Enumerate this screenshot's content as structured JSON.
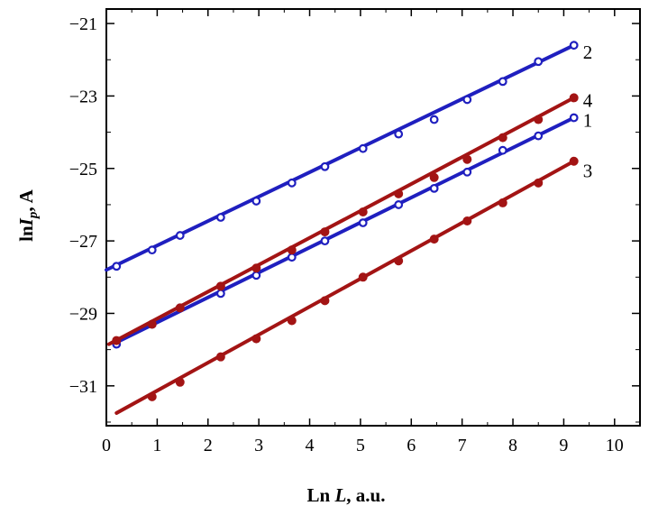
{
  "chart_data": {
    "type": "scatter",
    "title": "",
    "xlabel": {
      "prefix": "Ln ",
      "var": "L",
      "suffix": ", a.u."
    },
    "ylabel": {
      "prefix": "ln",
      "var": "I",
      "sub": "p",
      "suffix": ", A"
    },
    "xlim": [
      0,
      10.5
    ],
    "ylim": [
      -32.1,
      -20.6
    ],
    "x_ticks": [
      0,
      1,
      2,
      3,
      4,
      5,
      6,
      7,
      8,
      9,
      10
    ],
    "y_ticks": [
      -21,
      -23,
      -25,
      -27,
      -29,
      -31
    ],
    "y_tick_labels": [
      "−21",
      "−23",
      "−25",
      "−27",
      "−29",
      "−31"
    ],
    "y_minor_ticks": [
      -22,
      -24,
      -26,
      -28,
      -30,
      -32
    ],
    "grid": false,
    "legend": "inline labels at right end of each line",
    "series": [
      {
        "tag": "1",
        "color": "#1f1fbf",
        "marker": "open-circle",
        "fit": [
          [
            0.2,
            -29.8
          ],
          [
            9.2,
            -23.6
          ]
        ],
        "x": [
          0.2,
          0.9,
          1.45,
          2.25,
          2.95,
          3.65,
          4.3,
          5.05,
          5.75,
          6.45,
          7.1,
          7.8,
          8.5,
          9.2
        ],
        "y": [
          -29.85,
          -29.3,
          -28.85,
          -28.45,
          -27.95,
          -27.45,
          -27.0,
          -26.5,
          -26.0,
          -25.55,
          -25.1,
          -24.5,
          -24.1,
          -23.6
        ]
      },
      {
        "tag": "2",
        "color": "#1f1fbf",
        "marker": "open-circle",
        "fit": [
          [
            0,
            -27.8
          ],
          [
            9.2,
            -21.6
          ]
        ],
        "x": [
          0.2,
          0.9,
          1.45,
          2.25,
          2.95,
          3.65,
          4.3,
          5.05,
          5.75,
          6.45,
          7.1,
          7.8,
          8.5,
          9.2
        ],
        "y": [
          -27.7,
          -27.25,
          -26.85,
          -26.35,
          -25.9,
          -25.4,
          -24.95,
          -24.45,
          -24.05,
          -23.65,
          -23.1,
          -22.6,
          -22.05,
          -21.6
        ]
      },
      {
        "tag": "3",
        "color": "#a31414",
        "marker": "filled-circle",
        "fit": [
          [
            0.2,
            -31.75
          ],
          [
            9.2,
            -24.8
          ]
        ],
        "x": [
          0.9,
          1.45,
          2.25,
          2.95,
          3.65,
          4.3,
          5.05,
          5.75,
          6.45,
          7.1,
          7.8,
          8.5,
          9.2
        ],
        "y": [
          -31.3,
          -30.9,
          -30.2,
          -29.7,
          -29.2,
          -28.65,
          -28.0,
          -27.55,
          -26.95,
          -26.45,
          -25.95,
          -25.4,
          -24.8
        ]
      },
      {
        "tag": "4",
        "color": "#a31414",
        "marker": "filled-circle",
        "fit": [
          [
            0.05,
            -29.85
          ],
          [
            9.2,
            -23.05
          ]
        ],
        "x": [
          0.2,
          0.9,
          1.45,
          2.25,
          2.95,
          3.65,
          4.3,
          5.05,
          5.75,
          6.45,
          7.1,
          7.8,
          8.5,
          9.2
        ],
        "y": [
          -29.75,
          -29.3,
          -28.85,
          -28.25,
          -27.75,
          -27.25,
          -26.75,
          -26.2,
          -25.7,
          -25.25,
          -24.75,
          -24.15,
          -23.65,
          -23.05
        ]
      }
    ]
  }
}
